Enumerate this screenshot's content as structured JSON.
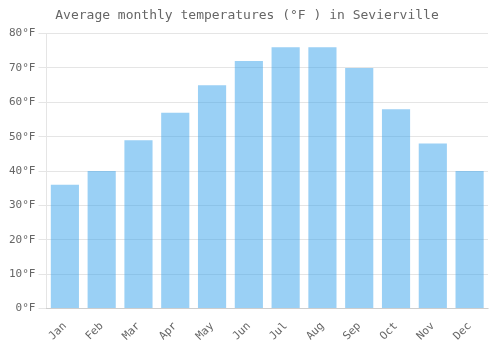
{
  "chart_data": {
    "type": "bar",
    "title": "Average monthly temperatures (°F ) in Sevierville",
    "categories": [
      "Jan",
      "Feb",
      "Mar",
      "Apr",
      "May",
      "Jun",
      "Jul",
      "Aug",
      "Sep",
      "Oct",
      "Nov",
      "Dec"
    ],
    "values": [
      36,
      40,
      49,
      57,
      65,
      72,
      76,
      76,
      70,
      58,
      48,
      40
    ],
    "ylim": [
      0,
      80
    ],
    "yticks": [
      {
        "value": 0,
        "label": "0°F"
      },
      {
        "value": 10,
        "label": "10°F"
      },
      {
        "value": 20,
        "label": "20°F"
      },
      {
        "value": 30,
        "label": "30°F"
      },
      {
        "value": 40,
        "label": "40°F"
      },
      {
        "value": 50,
        "label": "50°F"
      },
      {
        "value": 60,
        "label": "60°F"
      },
      {
        "value": 70,
        "label": "70°F"
      },
      {
        "value": 80,
        "label": "80°F"
      }
    ],
    "grid": true
  }
}
